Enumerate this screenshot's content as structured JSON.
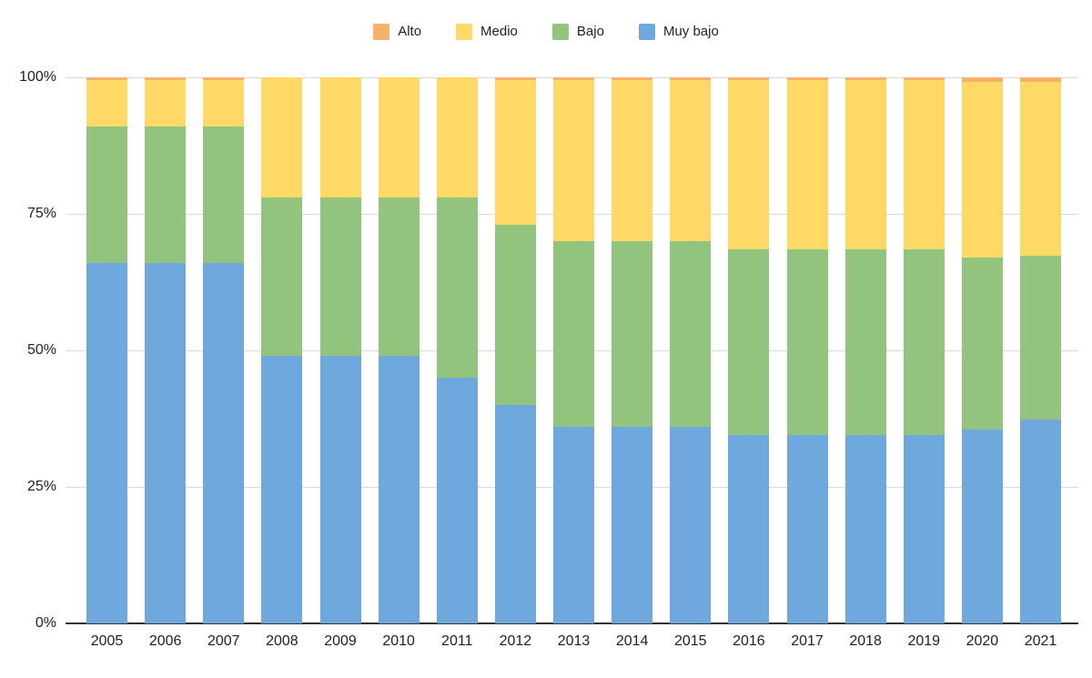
{
  "chart_data": {
    "type": "bar",
    "stacked": true,
    "percent_stacked": true,
    "title": "",
    "xlabel": "",
    "ylabel": "",
    "ylim": [
      0,
      100
    ],
    "grid": true,
    "legend_position": "top",
    "categories": [
      "2005",
      "2006",
      "2007",
      "2008",
      "2009",
      "2010",
      "2011",
      "2012",
      "2013",
      "2014",
      "2015",
      "2016",
      "2017",
      "2018",
      "2019",
      "2020",
      "2021"
    ],
    "series": [
      {
        "name": "Alto",
        "color": "#F6B26B",
        "values": [
          0.5,
          0.5,
          0.5,
          0,
          0,
          0,
          0,
          0.5,
          0.5,
          0.5,
          0.5,
          0.5,
          0.5,
          0.5,
          0.5,
          0.8,
          0.8
        ]
      },
      {
        "name": "Medio",
        "color": "#FFD966",
        "values": [
          8.5,
          8.5,
          8.5,
          22,
          22,
          22,
          22,
          26.5,
          29.5,
          29.5,
          29.5,
          31,
          31,
          31,
          31,
          32.2,
          31.9
        ]
      },
      {
        "name": "Bajo",
        "color": "#93C47D",
        "values": [
          25,
          25,
          25,
          29,
          29,
          29,
          33,
          33,
          34,
          34,
          34,
          34,
          34,
          34,
          34,
          31.5,
          30
        ]
      },
      {
        "name": "Muy bajo",
        "color": "#6FA8DC",
        "values": [
          66,
          66,
          66,
          49,
          49,
          49,
          45,
          40,
          36,
          36,
          36,
          34.5,
          34.5,
          34.5,
          34.5,
          35.5,
          37.3
        ]
      }
    ],
    "stack_order_bottom_to_top": [
      "Muy bajo",
      "Bajo",
      "Medio",
      "Alto"
    ],
    "yticks": [
      "0%",
      "25%",
      "50%",
      "75%",
      "100%"
    ],
    "ytick_values": [
      0,
      25,
      50,
      75,
      100
    ],
    "colors": {
      "gridline": "#d9d9d9",
      "axis": "#333333",
      "text": "#222222",
      "background": "#ffffff"
    }
  }
}
